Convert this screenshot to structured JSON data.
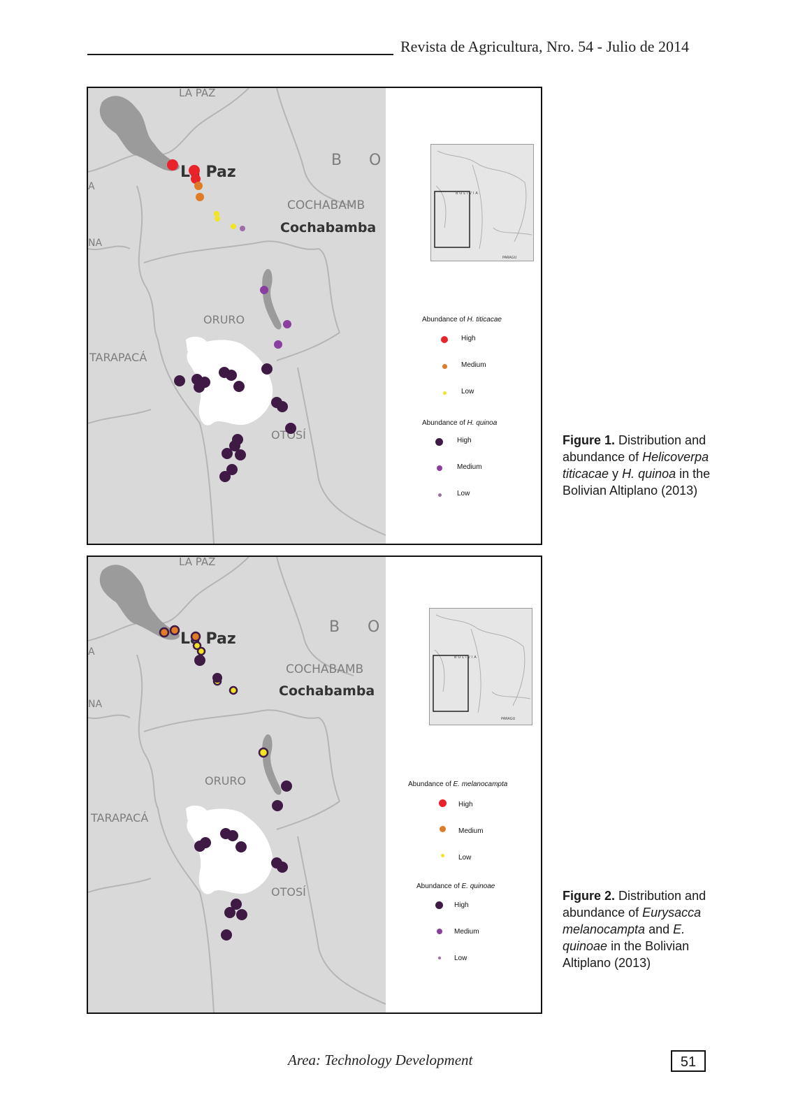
{
  "header": {
    "journal": "Revista de Agricultura, Nro. 54 - Julio de 2014"
  },
  "figures": [
    {
      "map_labels": {
        "la_paz_dept": "LA PAZ",
        "la_paz_city": "La Paz",
        "b_letter": "B",
        "o_letter": "O",
        "cochabamba_dept": "COCHABAMB",
        "cochabamba_city": "Cochabamba",
        "oruro": "ORURO",
        "tarapaca": "TARAPACÁ",
        "potosi": "OTOSÍ",
        "na": "NA",
        "a_edge": "A"
      },
      "inset": {
        "country": "BOLIVIA",
        "neighbor": "PARAGU"
      },
      "legend1": {
        "title_prefix": "Abundance of ",
        "title_species": "H. titicacae",
        "items": [
          {
            "label": "High",
            "color": "#e8232a"
          },
          {
            "label": "Medium",
            "color": "#e07b28"
          },
          {
            "label": "Low",
            "color": "#f2e425"
          }
        ]
      },
      "legend2": {
        "title_prefix": "Abundance of ",
        "title_species": "H. quinoa",
        "items": [
          {
            "label": "High",
            "color": "#3e1a45"
          },
          {
            "label": "Medium",
            "color": "#8a3ea0"
          },
          {
            "label": "Low",
            "color": "#9a6fa6"
          }
        ]
      },
      "caption": {
        "label": "Figure 1.",
        "text1": " Distribution and abundance of ",
        "species1": "Helicoverpa titicacae",
        "text2": " y ",
        "species2": "H. quinoa",
        "text3": " in the Bolivian Altiplano (2013)"
      }
    },
    {
      "map_labels": {
        "la_paz_dept": "LA PAZ",
        "la_paz_city": "La Paz",
        "b_letter": "B",
        "o_letter": "O",
        "cochabamba_dept": "COCHABAMB",
        "cochabamba_city": "Cochabamba",
        "oruro": "ORURO",
        "tarapaca": "TARAPACÁ",
        "potosi": "OTOSÍ",
        "na": "NA",
        "a_edge": "A"
      },
      "inset": {
        "country": "BOLIVIA",
        "neighbor": "PARAGU"
      },
      "legend1": {
        "title_prefix": "Abundance of ",
        "title_species": "E. melanocampta",
        "items": [
          {
            "label": "High",
            "color": "#e8232a"
          },
          {
            "label": "Medium",
            "color": "#e07b28"
          },
          {
            "label": "Low",
            "color": "#f2e425"
          }
        ]
      },
      "legend2": {
        "title_prefix": "Abundance of ",
        "title_species": "E. quinoae",
        "items": [
          {
            "label": "High",
            "color": "#3e1a45"
          },
          {
            "label": "Medium",
            "color": "#8a3ea0"
          },
          {
            "label": "Low",
            "color": "#9a6fa6"
          }
        ]
      },
      "caption": {
        "label": "Figure 2.",
        "text1": " Distribution and abundance of ",
        "species1": "Eurysacca melanocampta",
        "text2": " and ",
        "species2": "E. quinoae",
        "text3": " in the Bolivian Altiplano (2013)"
      }
    }
  ],
  "footer": {
    "area": "Area: Technology Development",
    "page_number": "51"
  }
}
